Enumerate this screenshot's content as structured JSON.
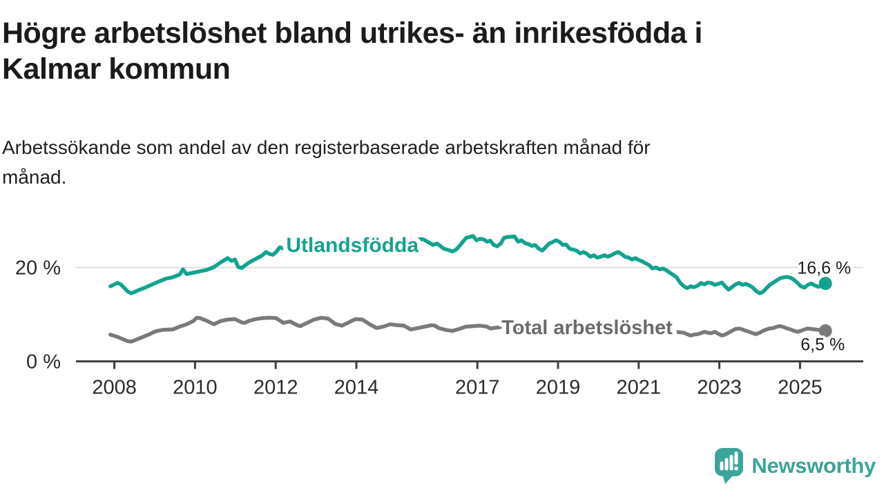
{
  "header": {
    "title": "Högre arbetslöshet bland utrikes- än inrikesfödda i\nKalmar kommun",
    "subtitle": "Arbetssökande som andel av den registerbaserade arbetskraften månad för\nmånad."
  },
  "branding": {
    "logo_text": "Newsworthy",
    "logo_color": "#3ba49b"
  },
  "colors": {
    "teal_series": "#12a390",
    "gray_series": "#7a7a7a",
    "gray_label": "#6b6b6b",
    "axis": "#3f3f3f",
    "gridline": "#d9d9d9",
    "text": "#1b1b19"
  },
  "chart_data": {
    "type": "line",
    "title": "Högre arbetslöshet bland utrikes- än inrikesfödda i Kalmar kommun",
    "subtitle": "Arbetssökande som andel av den registerbaserade arbetskraften månad för månad.",
    "unit": "%",
    "xlabel": "",
    "ylabel": "",
    "xlim": [
      2007.2,
      2026.5
    ],
    "ylim": [
      0,
      30
    ],
    "grid": "single horizontal gridline at 20%",
    "legend_position": "inline labels on lines",
    "x_axis": {
      "ticks": [
        "2008",
        "2010",
        "2012",
        "2014",
        "2017",
        "2019",
        "2021",
        "2023",
        "2025"
      ],
      "tick_years": [
        2008,
        2010,
        2012,
        2014,
        2017,
        2019,
        2021,
        2023,
        2025
      ]
    },
    "y_axis": {
      "ticks": [
        {
          "value": 0,
          "label": "0 %"
        },
        {
          "value": 20,
          "label": "20 %"
        }
      ]
    },
    "series": [
      {
        "name": "Utlandsfödda",
        "color": "#12a390",
        "label_anchor": {
          "t": 2013.9,
          "v": 24.8
        },
        "label_font_size": 30,
        "end_label": "16,6 %",
        "end_value": 16.6,
        "points": [
          [
            2007.9,
            16.0
          ],
          [
            2008.08,
            16.7
          ],
          [
            2008.16,
            16.4
          ],
          [
            2008.33,
            14.9
          ],
          [
            2008.42,
            14.5
          ],
          [
            2008.58,
            15.1
          ],
          [
            2008.76,
            15.7
          ],
          [
            2009.02,
            16.7
          ],
          [
            2009.27,
            17.6
          ],
          [
            2009.44,
            17.9
          ],
          [
            2009.62,
            18.5
          ],
          [
            2009.7,
            19.6
          ],
          [
            2009.79,
            18.6
          ],
          [
            2009.96,
            18.9
          ],
          [
            2010.13,
            19.2
          ],
          [
            2010.3,
            19.5
          ],
          [
            2010.47,
            20.1
          ],
          [
            2010.64,
            21.1
          ],
          [
            2010.81,
            22.0
          ],
          [
            2010.9,
            21.4
          ],
          [
            2010.99,
            21.7
          ],
          [
            2011.07,
            20.1
          ],
          [
            2011.16,
            19.9
          ],
          [
            2011.33,
            21.0
          ],
          [
            2011.5,
            21.8
          ],
          [
            2011.67,
            22.6
          ],
          [
            2011.76,
            23.3
          ],
          [
            2011.84,
            22.9
          ],
          [
            2011.93,
            22.7
          ],
          [
            2012.01,
            23.3
          ],
          [
            2012.1,
            24.3
          ],
          [
            2012.3,
            23.8
          ],
          [
            2012.5,
            24.3
          ],
          [
            2012.7,
            24.6
          ],
          [
            2012.9,
            24.2
          ],
          [
            2013.1,
            24.8
          ],
          [
            2013.3,
            25.1
          ],
          [
            2013.5,
            24.7
          ],
          [
            2013.7,
            25.2
          ],
          [
            2013.9,
            24.9
          ],
          [
            2014.1,
            25.4
          ],
          [
            2014.3,
            25.1
          ],
          [
            2014.5,
            25.6
          ],
          [
            2014.7,
            25.2
          ],
          [
            2014.9,
            25.5
          ],
          [
            2015.1,
            25.8
          ],
          [
            2015.3,
            25.5
          ],
          [
            2015.5,
            26.0
          ],
          [
            2015.66,
            26.0
          ],
          [
            2015.78,
            25.4
          ],
          [
            2015.9,
            24.8
          ],
          [
            2016.0,
            25.1
          ],
          [
            2016.17,
            24.0
          ],
          [
            2016.29,
            23.7
          ],
          [
            2016.38,
            23.4
          ],
          [
            2016.47,
            23.8
          ],
          [
            2016.55,
            24.5
          ],
          [
            2016.72,
            26.3
          ],
          [
            2016.89,
            26.7
          ],
          [
            2016.98,
            25.8
          ],
          [
            2017.06,
            26.1
          ],
          [
            2017.15,
            26.0
          ],
          [
            2017.24,
            25.5
          ],
          [
            2017.32,
            25.7
          ],
          [
            2017.41,
            24.8
          ],
          [
            2017.49,
            24.5
          ],
          [
            2017.58,
            25.1
          ],
          [
            2017.66,
            26.3
          ],
          [
            2017.75,
            26.5
          ],
          [
            2017.92,
            26.6
          ],
          [
            2018.01,
            25.5
          ],
          [
            2018.09,
            25.8
          ],
          [
            2018.18,
            25.2
          ],
          [
            2018.26,
            25.0
          ],
          [
            2018.35,
            24.6
          ],
          [
            2018.43,
            24.8
          ],
          [
            2018.52,
            24.0
          ],
          [
            2018.61,
            23.6
          ],
          [
            2018.69,
            24.3
          ],
          [
            2018.78,
            25.1
          ],
          [
            2018.86,
            25.4
          ],
          [
            2018.95,
            25.8
          ],
          [
            2019.03,
            25.5
          ],
          [
            2019.12,
            24.8
          ],
          [
            2019.2,
            24.9
          ],
          [
            2019.29,
            24.0
          ],
          [
            2019.38,
            23.8
          ],
          [
            2019.46,
            23.6
          ],
          [
            2019.55,
            23.0
          ],
          [
            2019.63,
            23.3
          ],
          [
            2019.72,
            22.9
          ],
          [
            2019.8,
            22.3
          ],
          [
            2019.89,
            22.6
          ],
          [
            2019.97,
            22.1
          ],
          [
            2020.06,
            22.3
          ],
          [
            2020.15,
            22.6
          ],
          [
            2020.23,
            22.3
          ],
          [
            2020.32,
            22.6
          ],
          [
            2020.4,
            23.0
          ],
          [
            2020.49,
            23.3
          ],
          [
            2020.57,
            22.9
          ],
          [
            2020.66,
            22.3
          ],
          [
            2020.75,
            22.1
          ],
          [
            2020.83,
            21.7
          ],
          [
            2020.92,
            22.0
          ],
          [
            2021.0,
            21.6
          ],
          [
            2021.09,
            21.3
          ],
          [
            2021.17,
            20.9
          ],
          [
            2021.26,
            20.5
          ],
          [
            2021.34,
            19.8
          ],
          [
            2021.43,
            20.0
          ],
          [
            2021.52,
            19.6
          ],
          [
            2021.6,
            19.8
          ],
          [
            2021.69,
            19.4
          ],
          [
            2021.77,
            18.9
          ],
          [
            2021.86,
            18.4
          ],
          [
            2021.94,
            17.9
          ],
          [
            2022.03,
            16.7
          ],
          [
            2022.12,
            16.0
          ],
          [
            2022.2,
            15.6
          ],
          [
            2022.29,
            16.0
          ],
          [
            2022.37,
            15.8
          ],
          [
            2022.46,
            16.1
          ],
          [
            2022.54,
            16.7
          ],
          [
            2022.63,
            16.4
          ],
          [
            2022.71,
            16.8
          ],
          [
            2022.8,
            16.7
          ],
          [
            2022.89,
            16.3
          ],
          [
            2022.97,
            16.5
          ],
          [
            2023.06,
            16.8
          ],
          [
            2023.14,
            16.0
          ],
          [
            2023.23,
            15.3
          ],
          [
            2023.31,
            15.8
          ],
          [
            2023.4,
            16.4
          ],
          [
            2023.49,
            16.7
          ],
          [
            2023.57,
            16.3
          ],
          [
            2023.66,
            16.5
          ],
          [
            2023.74,
            16.2
          ],
          [
            2023.83,
            15.7
          ],
          [
            2023.91,
            15.0
          ],
          [
            2024.0,
            14.5
          ],
          [
            2024.08,
            14.8
          ],
          [
            2024.17,
            15.6
          ],
          [
            2024.25,
            16.3
          ],
          [
            2024.34,
            16.8
          ],
          [
            2024.43,
            17.3
          ],
          [
            2024.51,
            17.7
          ],
          [
            2024.6,
            17.9
          ],
          [
            2024.68,
            18.0
          ],
          [
            2024.77,
            17.8
          ],
          [
            2024.85,
            17.4
          ],
          [
            2024.94,
            16.7
          ],
          [
            2025.02,
            16.0
          ],
          [
            2025.11,
            15.7
          ],
          [
            2025.19,
            16.3
          ],
          [
            2025.28,
            16.6
          ],
          [
            2025.36,
            16.2
          ],
          [
            2025.45,
            15.9
          ],
          [
            2025.54,
            16.1
          ],
          [
            2025.63,
            16.6
          ]
        ]
      },
      {
        "name": "Total arbetslöshet",
        "color": "#7a7a7a",
        "label_color": "#6b6b6b",
        "label_anchor": {
          "t": 2019.72,
          "v": 7.25
        },
        "label_font_size": 29,
        "end_label": "6,5 %",
        "end_value": 6.5,
        "points": [
          [
            2007.9,
            5.7
          ],
          [
            2008.08,
            5.2
          ],
          [
            2008.33,
            4.3
          ],
          [
            2008.42,
            4.2
          ],
          [
            2008.59,
            4.8
          ],
          [
            2008.85,
            5.7
          ],
          [
            2009.02,
            6.4
          ],
          [
            2009.19,
            6.7
          ],
          [
            2009.44,
            6.8
          ],
          [
            2009.62,
            7.4
          ],
          [
            2009.79,
            7.9
          ],
          [
            2009.96,
            8.6
          ],
          [
            2010.04,
            9.3
          ],
          [
            2010.13,
            9.2
          ],
          [
            2010.3,
            8.6
          ],
          [
            2010.47,
            7.9
          ],
          [
            2010.64,
            8.6
          ],
          [
            2010.81,
            8.9
          ],
          [
            2010.99,
            9.0
          ],
          [
            2011.16,
            8.3
          ],
          [
            2011.24,
            8.2
          ],
          [
            2011.33,
            8.6
          ],
          [
            2011.5,
            9.0
          ],
          [
            2011.67,
            9.2
          ],
          [
            2011.84,
            9.3
          ],
          [
            2012.01,
            9.2
          ],
          [
            2012.19,
            8.2
          ],
          [
            2012.36,
            8.5
          ],
          [
            2012.53,
            7.7
          ],
          [
            2012.61,
            7.5
          ],
          [
            2012.78,
            8.2
          ],
          [
            2012.95,
            8.9
          ],
          [
            2013.13,
            9.3
          ],
          [
            2013.3,
            9.1
          ],
          [
            2013.47,
            8.0
          ],
          [
            2013.64,
            7.6
          ],
          [
            2013.81,
            8.3
          ],
          [
            2013.98,
            9.0
          ],
          [
            2014.15,
            8.9
          ],
          [
            2014.33,
            7.9
          ],
          [
            2014.5,
            7.1
          ],
          [
            2014.67,
            7.4
          ],
          [
            2014.84,
            7.9
          ],
          [
            2015.01,
            7.7
          ],
          [
            2015.18,
            7.6
          ],
          [
            2015.35,
            6.8
          ],
          [
            2015.53,
            7.1
          ],
          [
            2015.7,
            7.4
          ],
          [
            2015.87,
            7.7
          ],
          [
            2015.95,
            7.6
          ],
          [
            2016.04,
            7.1
          ],
          [
            2016.21,
            6.7
          ],
          [
            2016.38,
            6.5
          ],
          [
            2016.55,
            6.9
          ],
          [
            2016.72,
            7.4
          ],
          [
            2016.89,
            7.5
          ],
          [
            2017.06,
            7.6
          ],
          [
            2017.24,
            7.4
          ],
          [
            2017.32,
            7.0
          ],
          [
            2017.5,
            7.2
          ],
          [
            2017.7,
            7.5
          ],
          [
            2017.9,
            7.3
          ],
          [
            2018.1,
            7.0
          ],
          [
            2018.3,
            7.2
          ],
          [
            2018.5,
            6.9
          ],
          [
            2018.7,
            6.7
          ],
          [
            2018.9,
            6.9
          ],
          [
            2019.1,
            7.0
          ],
          [
            2019.3,
            6.8
          ],
          [
            2019.5,
            6.6
          ],
          [
            2019.7,
            6.8
          ],
          [
            2019.9,
            7.0
          ],
          [
            2020.1,
            7.4
          ],
          [
            2020.3,
            8.0
          ],
          [
            2020.5,
            8.2
          ],
          [
            2020.7,
            7.9
          ],
          [
            2020.9,
            7.7
          ],
          [
            2021.1,
            7.5
          ],
          [
            2021.3,
            7.2
          ],
          [
            2021.5,
            6.9
          ],
          [
            2021.7,
            6.6
          ],
          [
            2021.9,
            6.3
          ],
          [
            2022.12,
            6.1
          ],
          [
            2022.2,
            5.8
          ],
          [
            2022.29,
            5.5
          ],
          [
            2022.37,
            5.7
          ],
          [
            2022.46,
            5.8
          ],
          [
            2022.54,
            6.0
          ],
          [
            2022.63,
            6.3
          ],
          [
            2022.71,
            6.1
          ],
          [
            2022.8,
            6.0
          ],
          [
            2022.89,
            6.3
          ],
          [
            2022.97,
            5.9
          ],
          [
            2023.06,
            5.5
          ],
          [
            2023.14,
            5.7
          ],
          [
            2023.23,
            6.1
          ],
          [
            2023.31,
            6.5
          ],
          [
            2023.4,
            6.9
          ],
          [
            2023.49,
            7.0
          ],
          [
            2023.57,
            6.8
          ],
          [
            2023.66,
            6.5
          ],
          [
            2023.74,
            6.3
          ],
          [
            2023.83,
            6.0
          ],
          [
            2023.91,
            5.8
          ],
          [
            2024.0,
            6.1
          ],
          [
            2024.08,
            6.5
          ],
          [
            2024.17,
            6.8
          ],
          [
            2024.25,
            7.0
          ],
          [
            2024.34,
            7.1
          ],
          [
            2024.43,
            7.4
          ],
          [
            2024.51,
            7.5
          ],
          [
            2024.6,
            7.3
          ],
          [
            2024.68,
            7.0
          ],
          [
            2024.77,
            6.8
          ],
          [
            2024.85,
            6.5
          ],
          [
            2024.94,
            6.3
          ],
          [
            2025.02,
            6.5
          ],
          [
            2025.11,
            6.8
          ],
          [
            2025.19,
            7.0
          ],
          [
            2025.28,
            6.9
          ],
          [
            2025.45,
            6.7
          ],
          [
            2025.63,
            6.5
          ]
        ]
      }
    ]
  }
}
